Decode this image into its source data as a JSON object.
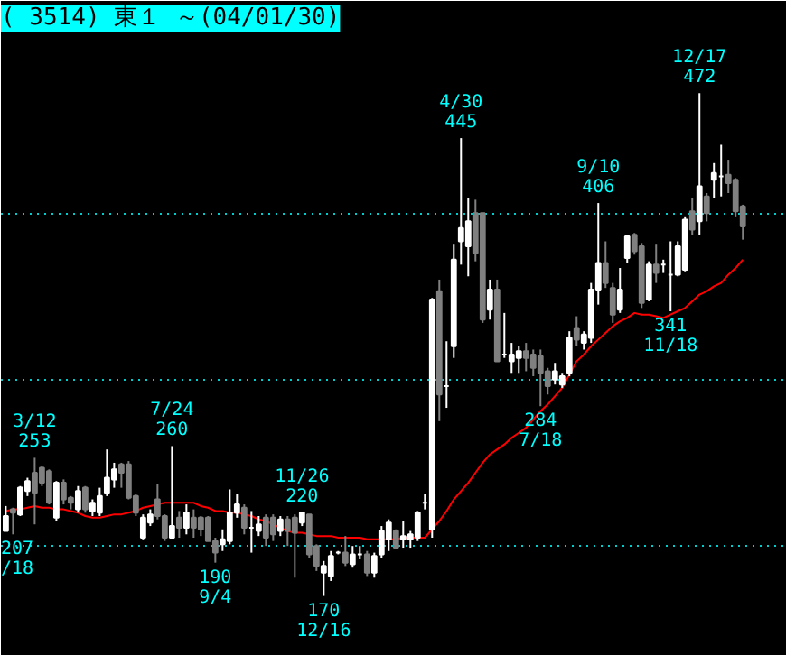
{
  "chart_data": {
    "type": "candlestick",
    "title": "( 3514) 東１ ～(04/01/30)",
    "categories": [
      null,
      null,
      null,
      null,
      null,
      null,
      null,
      null,
      null,
      null,
      null,
      null,
      null,
      null,
      null,
      null,
      null,
      null,
      null,
      null,
      null,
      null,
      null,
      null,
      null,
      null,
      null,
      null,
      null,
      null,
      null,
      null,
      null,
      null,
      null,
      null,
      null,
      null,
      null,
      null,
      null,
      null,
      null,
      null,
      null,
      null,
      null,
      null,
      null,
      null,
      null,
      null,
      null,
      null,
      null,
      null,
      null,
      null,
      null,
      null,
      null,
      null,
      null,
      null,
      null,
      null,
      null,
      null,
      null,
      null,
      null,
      null,
      null,
      null,
      null,
      null,
      null,
      null,
      null,
      null,
      null,
      null,
      null,
      null,
      null,
      null,
      null,
      null,
      null,
      null,
      null,
      null,
      null,
      null,
      null,
      null,
      null,
      null,
      null,
      null,
      null,
      null,
      null
    ],
    "ohlc": [
      [
        209,
        224,
        209,
        218
      ],
      [
        222,
        223,
        207,
        220
      ],
      [
        219,
        236,
        218,
        235
      ],
      [
        233,
        241,
        230,
        239
      ],
      [
        244,
        253,
        213,
        232
      ],
      [
        247,
        248,
        236,
        238
      ],
      [
        245,
        246,
        225,
        226
      ],
      [
        217,
        239,
        215,
        238
      ],
      [
        238,
        240,
        225,
        228
      ],
      [
        229,
        230,
        222,
        226
      ],
      [
        222,
        236,
        220,
        233
      ],
      [
        235,
        236,
        220,
        222
      ],
      [
        221,
        228,
        218,
        226
      ],
      [
        220,
        235,
        218,
        230
      ],
      [
        232,
        258,
        230,
        241
      ],
      [
        240,
        250,
        235,
        246
      ],
      [
        249,
        250,
        235,
        244
      ],
      [
        249,
        251,
        228,
        229
      ],
      [
        230,
        231,
        218,
        220
      ],
      [
        205,
        219,
        204,
        217
      ],
      [
        214,
        222,
        212,
        219
      ],
      [
        228,
        237,
        216,
        218
      ],
      [
        218,
        219,
        203,
        205
      ],
      [
        205,
        260,
        205,
        212
      ],
      [
        217,
        221,
        205,
        211
      ],
      [
        211,
        225,
        207,
        220
      ],
      [
        217,
        222,
        205,
        211
      ],
      [
        217,
        218,
        206,
        210
      ],
      [
        217,
        218,
        203,
        203
      ],
      [
        203,
        205,
        190,
        196
      ],
      [
        201,
        210,
        197,
        204
      ],
      [
        203,
        234,
        201,
        220
      ],
      [
        220,
        231,
        217,
        225
      ],
      [
        223,
        225,
        207,
        211
      ],
      [
        211,
        221,
        196,
        211
      ],
      [
        209,
        218,
        206,
        213
      ],
      [
        217,
        219,
        200,
        205
      ],
      [
        217,
        219,
        203,
        207
      ],
      [
        209,
        218,
        206,
        216
      ],
      [
        216,
        218,
        200,
        209
      ],
      [
        217,
        219,
        181,
        208
      ],
      [
        214,
        220,
        212,
        220
      ],
      [
        219,
        219,
        193,
        195
      ],
      [
        200,
        201,
        185,
        188
      ],
      [
        184,
        191,
        170,
        188
      ],
      [
        182,
        197,
        179,
        194
      ],
      [
        196,
        197,
        195,
        196
      ],
      [
        196,
        206,
        188,
        190
      ],
      [
        189,
        200,
        187,
        195
      ],
      [
        195,
        200,
        192,
        195
      ],
      [
        195,
        197,
        182,
        184
      ],
      [
        184,
        196,
        181,
        194
      ],
      [
        195,
        212,
        193,
        209
      ],
      [
        204,
        216,
        197,
        214
      ],
      [
        209,
        210,
        198,
        199
      ],
      [
        204,
        215,
        199,
        206
      ],
      [
        204,
        209,
        199,
        207
      ],
      [
        205,
        221,
        203,
        220
      ],
      [
        226,
        231,
        222,
        226
      ],
      [
        210,
        349,
        205,
        348
      ],
      [
        353,
        360,
        275,
        291
      ],
      [
        296,
        323,
        283,
        296
      ],
      [
        320,
        381,
        313,
        372
      ],
      [
        383,
        445,
        369,
        391
      ],
      [
        380,
        409,
        362,
        395
      ],
      [
        400,
        408,
        371,
        376
      ],
      [
        400,
        400,
        334,
        336
      ],
      [
        342,
        360,
        336,
        354
      ],
      [
        354,
        360,
        311,
        311
      ],
      [
        315,
        340,
        313,
        315
      ],
      [
        311,
        322,
        304,
        315
      ],
      [
        313,
        320,
        304,
        317
      ],
      [
        317,
        322,
        305,
        313
      ],
      [
        315,
        318,
        302,
        307
      ],
      [
        314,
        318,
        284,
        304
      ],
      [
        305,
        307,
        291,
        296
      ],
      [
        300,
        310,
        297,
        305
      ],
      [
        297,
        304,
        295,
        302
      ],
      [
        304,
        329,
        302,
        325
      ],
      [
        331,
        338,
        320,
        324
      ],
      [
        322,
        329,
        318,
        327
      ],
      [
        325,
        358,
        322,
        354
      ],
      [
        354,
        406,
        345,
        370
      ],
      [
        370,
        383,
        355,
        358
      ],
      [
        355,
        358,
        334,
        339
      ],
      [
        342,
        367,
        340,
        354
      ],
      [
        373,
        387,
        370,
        386
      ],
      [
        387,
        388,
        375,
        377
      ],
      [
        380,
        382,
        343,
        346
      ],
      [
        348,
        371,
        347,
        369
      ],
      [
        369,
        381,
        358,
        364
      ],
      [
        369,
        372,
        364,
        369
      ],
      [
        363,
        383,
        341,
        363
      ],
      [
        363,
        383,
        362,
        380
      ],
      [
        366,
        398,
        365,
        396
      ],
      [
        401,
        409,
        387,
        390
      ],
      [
        395,
        472,
        387,
        416
      ],
      [
        410,
        412,
        395,
        400
      ],
      [
        420,
        430,
        409,
        424
      ],
      [
        422,
        441,
        410,
        422
      ],
      [
        423,
        432,
        412,
        418
      ],
      [
        420,
        421,
        398,
        401
      ],
      [
        404,
        405,
        384,
        392
      ]
    ],
    "series": [
      {
        "type": "line",
        "color": "#ff0000",
        "values": [
          221,
          222,
          222,
          223,
          224,
          223,
          223,
          222,
          222,
          221,
          220,
          218,
          217,
          217,
          218,
          219,
          219,
          220,
          221,
          223,
          224,
          225,
          226,
          226,
          226,
          226,
          226,
          224,
          223,
          221,
          221,
          220,
          220,
          219,
          218,
          216,
          215,
          213,
          211,
          209,
          208,
          208,
          207,
          206,
          206,
          206,
          205,
          205,
          205,
          205,
          204,
          204,
          204,
          204,
          204,
          205,
          205,
          205,
          205,
          210,
          215,
          221,
          228,
          233,
          238,
          244,
          250,
          255,
          258,
          261,
          265,
          268,
          271,
          276,
          281,
          285,
          290,
          295,
          303,
          311,
          315,
          320,
          324,
          328,
          332,
          335,
          337,
          340,
          339,
          339,
          338,
          337,
          339,
          341,
          343,
          347,
          351,
          353,
          356,
          358,
          363,
          367,
          372
        ]
      }
    ],
    "annotations": [
      {
        "text": "207\n/18",
        "y": 207
      },
      {
        "text": "3/12\n253",
        "y": 253
      },
      {
        "text": "7/24\n260",
        "y": 260
      },
      {
        "text": "190\n9/4",
        "y": 190
      },
      {
        "text": "11/26\n220",
        "y": 220
      },
      {
        "text": "170\n12/16",
        "y": 170
      },
      {
        "text": "4/30\n445",
        "y": 445
      },
      {
        "text": "284\n7/18",
        "y": 284
      },
      {
        "text": "9/10\n406",
        "y": 406
      },
      {
        "text": "341\n11/18",
        "y": 341
      },
      {
        "text": "12/17\n472",
        "y": 472
      }
    ],
    "ylim": [
      134,
      509
    ],
    "yticks": [
      {
        "value": 200,
        "label": null
      },
      {
        "value": 300,
        "label": null
      },
      {
        "value": 400,
        "label": null
      }
    ],
    "grid": "y",
    "tick_labels": false
  }
}
